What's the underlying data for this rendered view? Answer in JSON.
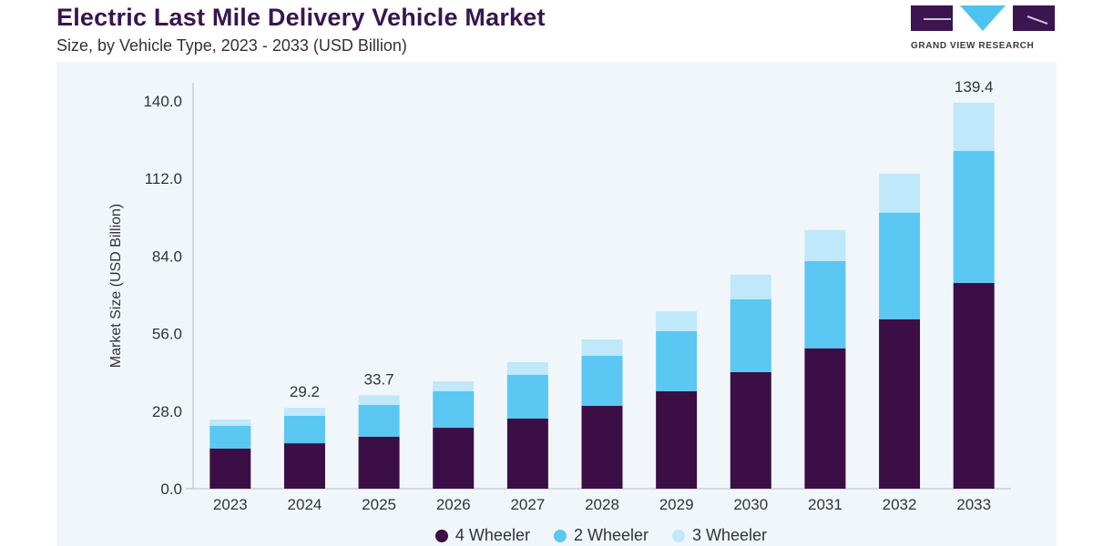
{
  "header": {
    "title": "Electric Last Mile Delivery Vehicle Market",
    "subtitle": "Size, by Vehicle Type, 2023 - 2033 (USD Billion)"
  },
  "logo": {
    "text": "GRAND VIEW RESEARCH"
  },
  "chart_data": {
    "type": "bar",
    "stacked": true,
    "title": "Electric Last Mile Delivery Vehicle Market",
    "subtitle": "Size, by Vehicle Type, 2023 - 2033 (USD Billion)",
    "xlabel": "",
    "ylabel": "Market Size (USD Billion)",
    "ylim": [
      0,
      140
    ],
    "yticks": [
      "0.0",
      "28.0",
      "56.0",
      "84.0",
      "112.0",
      "140.0"
    ],
    "ytick_values": [
      0,
      28,
      56,
      84,
      112,
      140
    ],
    "categories": [
      "2023",
      "2024",
      "2025",
      "2026",
      "2027",
      "2028",
      "2029",
      "2030",
      "2031",
      "2032",
      "2033"
    ],
    "series": [
      {
        "name": "4 Wheeler",
        "color": "#3b0f45",
        "values": [
          14.5,
          16.4,
          18.8,
          22.0,
          25.3,
          29.9,
          35.2,
          42.1,
          50.7,
          61.2,
          74.3
        ]
      },
      {
        "name": "2 Wheeler",
        "color": "#5ac8f2",
        "values": [
          8.2,
          9.9,
          11.5,
          13.2,
          15.8,
          18.1,
          21.7,
          26.3,
          31.5,
          38.5,
          47.7
        ]
      },
      {
        "name": "3 Wheeler",
        "color": "#bfe8fa",
        "values": [
          2.3,
          2.9,
          3.4,
          3.6,
          4.6,
          5.9,
          7.2,
          8.9,
          11.2,
          14.1,
          17.4
        ]
      }
    ],
    "data_labels": [
      {
        "category": "2024",
        "text": "29.2"
      },
      {
        "category": "2025",
        "text": "33.7"
      },
      {
        "category": "2033",
        "text": "139.4"
      }
    ],
    "grid": false,
    "legend_placement": "bottom"
  }
}
